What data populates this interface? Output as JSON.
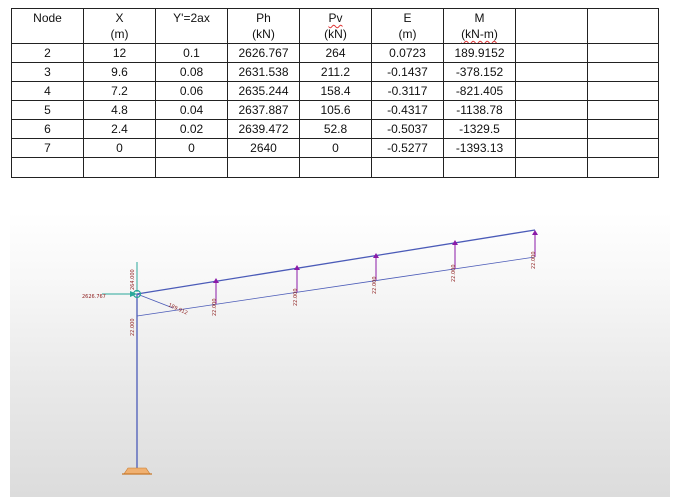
{
  "table": {
    "headers": [
      {
        "line1": "Node",
        "line2": ""
      },
      {
        "line1": "X",
        "line2": "(m)"
      },
      {
        "line1": "Y'=2ax",
        "line2": ""
      },
      {
        "line1": "Ph",
        "line2": "(kN)"
      },
      {
        "line1": "Pv",
        "line2": "(kN)"
      },
      {
        "line1": "E",
        "line2": "(m)"
      },
      {
        "line1": "M",
        "line2": "(kN-m)"
      },
      {
        "line1": "",
        "line2": ""
      },
      {
        "line1": "",
        "line2": ""
      }
    ],
    "rows": [
      [
        "2",
        "12",
        "0.1",
        "2626.767",
        "264",
        "0.0723",
        "189.9152",
        "",
        ""
      ],
      [
        "3",
        "9.6",
        "0.08",
        "2631.538",
        "211.2",
        "-0.1437",
        "-378.152",
        "",
        ""
      ],
      [
        "4",
        "7.2",
        "0.06",
        "2635.244",
        "158.4",
        "-0.3117",
        "-821.405",
        "",
        ""
      ],
      [
        "5",
        "4.8",
        "0.04",
        "2637.887",
        "105.6",
        "-0.4317",
        "-1138.78",
        "",
        ""
      ],
      [
        "6",
        "2.4",
        "0.02",
        "2639.472",
        "52.8",
        "-0.5037",
        "-1329.5",
        "",
        ""
      ],
      [
        "7",
        "0",
        "0",
        "2640",
        "0",
        "-0.5277",
        "-1393.13",
        "",
        ""
      ],
      [
        "",
        "",
        "",
        "",
        "",
        "",
        "",
        "",
        ""
      ]
    ]
  },
  "model": {
    "labels": {
      "horizontal_load": "2626.767",
      "vertical_load": "264.000",
      "inclined_load": "189.912",
      "member_load": "22.000"
    },
    "colors": {
      "frame": "#4b5bb8",
      "load_arrow": "#8b1aa8",
      "label": "#8b1a1a",
      "support": "#e8a050",
      "node": "#2aa89a"
    }
  }
}
